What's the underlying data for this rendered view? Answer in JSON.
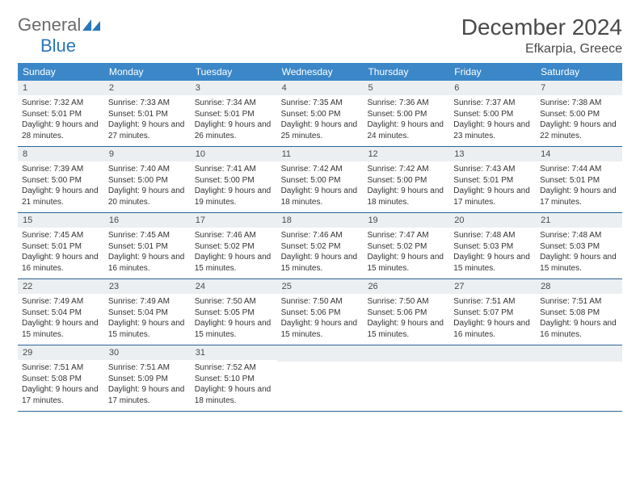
{
  "logo": {
    "gray": "General",
    "blue": "Blue"
  },
  "title": "December 2024",
  "location": "Efkarpia, Greece",
  "colors": {
    "weekday_bg": "#3b87c8",
    "weekday_fg": "#ffffff",
    "daynum_bg": "#eceff1",
    "row_border": "#2a6496",
    "title_fg": "#4a4a4a",
    "logo_gray": "#6b6b6b",
    "logo_blue": "#2a76b8",
    "text": "#333333",
    "bg": "#ffffff"
  },
  "weekdays": [
    "Sunday",
    "Monday",
    "Tuesday",
    "Wednesday",
    "Thursday",
    "Friday",
    "Saturday"
  ],
  "weeks": [
    [
      {
        "n": "1",
        "sunrise": "7:32 AM",
        "sunset": "5:01 PM",
        "dl": "9 hours and 28 minutes."
      },
      {
        "n": "2",
        "sunrise": "7:33 AM",
        "sunset": "5:01 PM",
        "dl": "9 hours and 27 minutes."
      },
      {
        "n": "3",
        "sunrise": "7:34 AM",
        "sunset": "5:01 PM",
        "dl": "9 hours and 26 minutes."
      },
      {
        "n": "4",
        "sunrise": "7:35 AM",
        "sunset": "5:00 PM",
        "dl": "9 hours and 25 minutes."
      },
      {
        "n": "5",
        "sunrise": "7:36 AM",
        "sunset": "5:00 PM",
        "dl": "9 hours and 24 minutes."
      },
      {
        "n": "6",
        "sunrise": "7:37 AM",
        "sunset": "5:00 PM",
        "dl": "9 hours and 23 minutes."
      },
      {
        "n": "7",
        "sunrise": "7:38 AM",
        "sunset": "5:00 PM",
        "dl": "9 hours and 22 minutes."
      }
    ],
    [
      {
        "n": "8",
        "sunrise": "7:39 AM",
        "sunset": "5:00 PM",
        "dl": "9 hours and 21 minutes."
      },
      {
        "n": "9",
        "sunrise": "7:40 AM",
        "sunset": "5:00 PM",
        "dl": "9 hours and 20 minutes."
      },
      {
        "n": "10",
        "sunrise": "7:41 AM",
        "sunset": "5:00 PM",
        "dl": "9 hours and 19 minutes."
      },
      {
        "n": "11",
        "sunrise": "7:42 AM",
        "sunset": "5:00 PM",
        "dl": "9 hours and 18 minutes."
      },
      {
        "n": "12",
        "sunrise": "7:42 AM",
        "sunset": "5:00 PM",
        "dl": "9 hours and 18 minutes."
      },
      {
        "n": "13",
        "sunrise": "7:43 AM",
        "sunset": "5:01 PM",
        "dl": "9 hours and 17 minutes."
      },
      {
        "n": "14",
        "sunrise": "7:44 AM",
        "sunset": "5:01 PM",
        "dl": "9 hours and 17 minutes."
      }
    ],
    [
      {
        "n": "15",
        "sunrise": "7:45 AM",
        "sunset": "5:01 PM",
        "dl": "9 hours and 16 minutes."
      },
      {
        "n": "16",
        "sunrise": "7:45 AM",
        "sunset": "5:01 PM",
        "dl": "9 hours and 16 minutes."
      },
      {
        "n": "17",
        "sunrise": "7:46 AM",
        "sunset": "5:02 PM",
        "dl": "9 hours and 15 minutes."
      },
      {
        "n": "18",
        "sunrise": "7:46 AM",
        "sunset": "5:02 PM",
        "dl": "9 hours and 15 minutes."
      },
      {
        "n": "19",
        "sunrise": "7:47 AM",
        "sunset": "5:02 PM",
        "dl": "9 hours and 15 minutes."
      },
      {
        "n": "20",
        "sunrise": "7:48 AM",
        "sunset": "5:03 PM",
        "dl": "9 hours and 15 minutes."
      },
      {
        "n": "21",
        "sunrise": "7:48 AM",
        "sunset": "5:03 PM",
        "dl": "9 hours and 15 minutes."
      }
    ],
    [
      {
        "n": "22",
        "sunrise": "7:49 AM",
        "sunset": "5:04 PM",
        "dl": "9 hours and 15 minutes."
      },
      {
        "n": "23",
        "sunrise": "7:49 AM",
        "sunset": "5:04 PM",
        "dl": "9 hours and 15 minutes."
      },
      {
        "n": "24",
        "sunrise": "7:50 AM",
        "sunset": "5:05 PM",
        "dl": "9 hours and 15 minutes."
      },
      {
        "n": "25",
        "sunrise": "7:50 AM",
        "sunset": "5:06 PM",
        "dl": "9 hours and 15 minutes."
      },
      {
        "n": "26",
        "sunrise": "7:50 AM",
        "sunset": "5:06 PM",
        "dl": "9 hours and 15 minutes."
      },
      {
        "n": "27",
        "sunrise": "7:51 AM",
        "sunset": "5:07 PM",
        "dl": "9 hours and 16 minutes."
      },
      {
        "n": "28",
        "sunrise": "7:51 AM",
        "sunset": "5:08 PM",
        "dl": "9 hours and 16 minutes."
      }
    ],
    [
      {
        "n": "29",
        "sunrise": "7:51 AM",
        "sunset": "5:08 PM",
        "dl": "9 hours and 17 minutes."
      },
      {
        "n": "30",
        "sunrise": "7:51 AM",
        "sunset": "5:09 PM",
        "dl": "9 hours and 17 minutes."
      },
      {
        "n": "31",
        "sunrise": "7:52 AM",
        "sunset": "5:10 PM",
        "dl": "9 hours and 18 minutes."
      },
      {
        "empty": true
      },
      {
        "empty": true
      },
      {
        "empty": true
      },
      {
        "empty": true
      }
    ]
  ],
  "labels": {
    "sunrise": "Sunrise: ",
    "sunset": "Sunset: ",
    "daylight": "Daylight: "
  }
}
